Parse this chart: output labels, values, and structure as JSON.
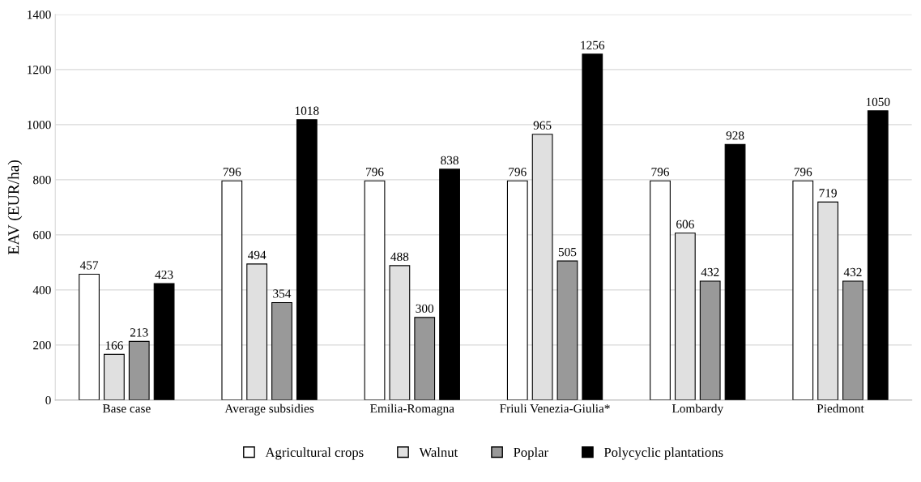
{
  "chart_data": {
    "type": "bar",
    "ylabel": "EAV (EUR/ha)",
    "categories": [
      "Base case",
      "Average subsidies",
      "Emilia-Romagna",
      "Friuli Venezia-Giulia*",
      "Lombardy",
      "Piedmont"
    ],
    "series": [
      {
        "name": "Agricultural crops",
        "color": "#ffffff",
        "values": [
          457,
          796,
          796,
          796,
          796,
          796
        ]
      },
      {
        "name": "Walnut",
        "color": "#e0e0e0",
        "values": [
          166,
          494,
          488,
          965,
          606,
          719
        ]
      },
      {
        "name": "Poplar",
        "color": "#999999",
        "values": [
          213,
          354,
          300,
          505,
          432,
          432
        ]
      },
      {
        "name": "Polycyclic plantations",
        "color": "#000000",
        "values": [
          423,
          1018,
          838,
          1256,
          928,
          1050
        ]
      }
    ],
    "ylim": [
      0,
      1400
    ],
    "yticks": [
      0,
      200,
      400,
      600,
      800,
      1000,
      1200,
      1400
    ],
    "grid": "y",
    "legend": "bottom",
    "data_labels": true
  }
}
